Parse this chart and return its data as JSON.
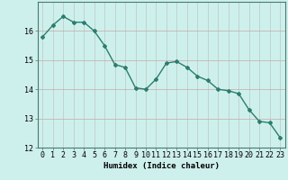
{
  "x": [
    0,
    1,
    2,
    3,
    4,
    5,
    6,
    7,
    8,
    9,
    10,
    11,
    12,
    13,
    14,
    15,
    16,
    17,
    18,
    19,
    20,
    21,
    22,
    23
  ],
  "y": [
    15.8,
    16.2,
    16.5,
    16.3,
    16.3,
    16.0,
    15.5,
    14.85,
    14.75,
    14.05,
    14.0,
    14.35,
    14.9,
    14.95,
    14.75,
    14.45,
    14.3,
    14.0,
    13.95,
    13.85,
    13.3,
    12.9,
    12.85,
    12.35
  ],
  "line_color": "#2d7d6e",
  "marker": "D",
  "marker_size": 2.0,
  "bg_color": "#cef0ec",
  "grid_color_v": "#b8c8c4",
  "grid_color_h": "#c8a8a8",
  "xlabel": "Humidex (Indice chaleur)",
  "ylim": [
    12,
    17
  ],
  "xlim": [
    -0.5,
    23.5
  ],
  "yticks": [
    12,
    13,
    14,
    15,
    16
  ],
  "xticks": [
    0,
    1,
    2,
    3,
    4,
    5,
    6,
    7,
    8,
    9,
    10,
    11,
    12,
    13,
    14,
    15,
    16,
    17,
    18,
    19,
    20,
    21,
    22,
    23
  ],
  "xlabel_fontsize": 6.5,
  "tick_fontsize": 6.0
}
